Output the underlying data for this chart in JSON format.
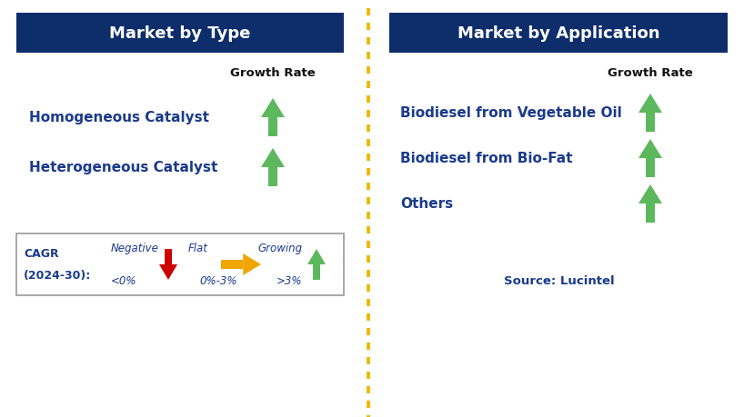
{
  "header_bg_color": "#0d2d6b",
  "header_text_color": "#ffffff",
  "body_bg_color": "#ffffff",
  "label_text_color": "#1a3a8c",
  "growth_rate_color": "#111111",
  "source_color": "#1a3a8c",
  "dashed_line_color": "#f0b800",
  "left_title": "Market by Type",
  "right_title": "Market by Application",
  "left_items": [
    "Homogeneous Catalyst",
    "Heterogeneous Catalyst"
  ],
  "right_items": [
    "Biodiesel from Vegetable Oil",
    "Biodiesel from Bio-Fat",
    "Others"
  ],
  "legend_label_line1": "CAGR",
  "legend_label_line2": "(2024-30):",
  "legend_neg_text": "Negative",
  "legend_neg_val": "<0%",
  "legend_flat_text": "Flat",
  "legend_flat_val": "0%-3%",
  "legend_grow_text": "Growing",
  "legend_grow_val": ">3%",
  "source_text": "Source: Lucintel",
  "arrow_green": "#5cb85c",
  "arrow_red": "#cc0000",
  "arrow_yellow": "#f0a500",
  "fig_width": 8.18,
  "fig_height": 4.6,
  "dpi": 100
}
